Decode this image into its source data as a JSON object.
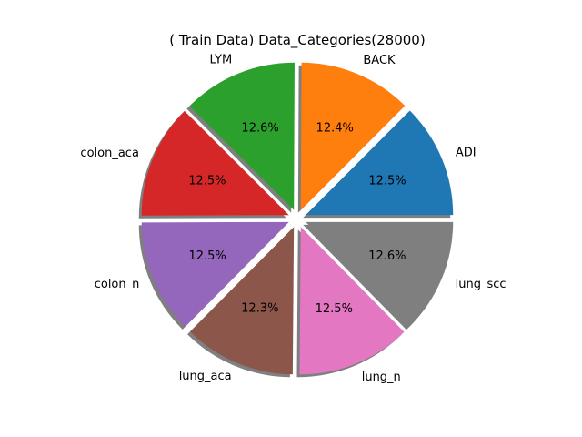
{
  "chart_data": {
    "type": "pie",
    "title": "( Train Data) Data_Categories(28000)",
    "slices": [
      {
        "label": "ADI",
        "value": 12.5,
        "pct_label": "12.5%",
        "color": "#1f77b4"
      },
      {
        "label": "BACK",
        "value": 12.4,
        "pct_label": "12.4%",
        "color": "#ff7f0e"
      },
      {
        "label": "LYM",
        "value": 12.6,
        "pct_label": "12.6%",
        "color": "#2ca02c"
      },
      {
        "label": "colon_aca",
        "value": 12.5,
        "pct_label": "12.5%",
        "color": "#d62728"
      },
      {
        "label": "colon_n",
        "value": 12.5,
        "pct_label": "12.5%",
        "color": "#9467bd"
      },
      {
        "label": "lung_aca",
        "value": 12.3,
        "pct_label": "12.3%",
        "color": "#8c564b"
      },
      {
        "label": "lung_n",
        "value": 12.5,
        "pct_label": "12.5%",
        "color": "#e377c2"
      },
      {
        "label": "lung_scc",
        "value": 12.6,
        "pct_label": "12.6%",
        "color": "#7f7f7f"
      }
    ],
    "start_angle_deg": 0,
    "direction": "counterclockwise",
    "exploded": true,
    "shadow": true
  }
}
